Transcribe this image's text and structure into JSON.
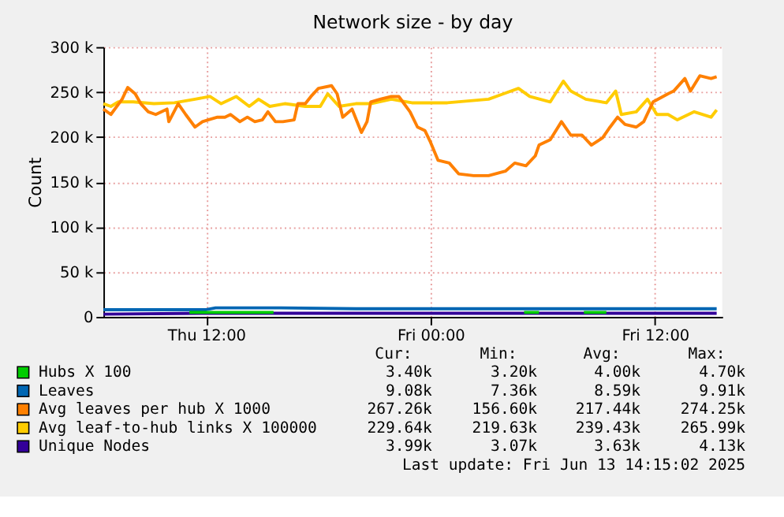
{
  "chart_data": {
    "type": "line",
    "title": "Network size - by day",
    "ylabel": "Count",
    "xlim": [
      "2025-06-12T06:30",
      "2025-06-13T15:36"
    ],
    "ylim": [
      0,
      300000
    ],
    "xticks": [
      {
        "value": "2025-06-12T12:00",
        "label": "Thu 12:00"
      },
      {
        "value": "2025-06-13T00:00",
        "label": "Fri 00:00"
      },
      {
        "value": "2025-06-13T12:00",
        "label": "Fri 12:00"
      }
    ],
    "yticks": [
      0,
      {
        "value": 50000,
        "label": "50 k"
      },
      {
        "value": 100000,
        "label": "100 k"
      },
      {
        "value": 150000,
        "label": "150 k"
      },
      {
        "value": 200000,
        "label": "200 k"
      },
      {
        "value": 250000,
        "label": "250 k"
      },
      {
        "value": 300000,
        "label": "300 k"
      }
    ],
    "grid": true,
    "legend": "bottom",
    "series": [
      {
        "name": "Hubs X 100",
        "color": "#00cc00",
        "x": [
          "2025-06-12T11:06",
          "2025-06-12T15:36",
          "2025-06-12T16:00",
          "2025-06-13T05:00",
          "2025-06-13T05:48",
          "2025-06-13T06:00",
          "2025-06-13T08:12",
          "2025-06-13T09:24"
        ],
        "values": [
          5000,
          5000,
          null,
          5000,
          5000,
          null,
          5000,
          5000
        ]
      },
      {
        "name": "Leaves",
        "color": "#0066b3",
        "x": [
          "2025-06-12T06:30",
          "2025-06-12T12:00",
          "2025-06-12T12:30",
          "2025-06-12T16:00",
          "2025-06-12T20:00",
          "2025-06-13T00:00",
          "2025-06-13T04:00",
          "2025-06-13T09:00",
          "2025-06-13T12:00",
          "2025-06-13T15:18"
        ],
        "values": [
          8000,
          8000,
          10000,
          10000,
          9000,
          9000,
          9000,
          9000,
          9000,
          9000
        ]
      },
      {
        "name": "Avg leaves per hub X 1000",
        "color": "#ff8000",
        "x": [
          "2025-06-12T06:30",
          "2025-06-12T06:54",
          "2025-06-12T07:30",
          "2025-06-12T07:48",
          "2025-06-12T08:12",
          "2025-06-12T08:30",
          "2025-06-12T08:54",
          "2025-06-12T09:18",
          "2025-06-12T09:54",
          "2025-06-12T10:00",
          "2025-06-12T10:30",
          "2025-06-12T10:54",
          "2025-06-12T11:24",
          "2025-06-12T11:48",
          "2025-06-12T12:06",
          "2025-06-12T12:36",
          "2025-06-12T13:00",
          "2025-06-12T13:18",
          "2025-06-12T13:48",
          "2025-06-12T14:12",
          "2025-06-12T14:36",
          "2025-06-12T15:00",
          "2025-06-12T15:18",
          "2025-06-12T15:42",
          "2025-06-12T16:06",
          "2025-06-12T16:42",
          "2025-06-12T16:54",
          "2025-06-12T17:18",
          "2025-06-12T17:36",
          "2025-06-12T18:00",
          "2025-06-12T18:42",
          "2025-06-12T19:00",
          "2025-06-12T19:18",
          "2025-06-12T19:48",
          "2025-06-12T20:18",
          "2025-06-12T20:36",
          "2025-06-12T20:48",
          "2025-06-12T21:18",
          "2025-06-12T21:54",
          "2025-06-12T22:18",
          "2025-06-12T22:54",
          "2025-06-12T23:18",
          "2025-06-12T23:42",
          "2025-06-13T00:00",
          "2025-06-13T00:24",
          "2025-06-13T01:00",
          "2025-06-13T01:30",
          "2025-06-13T02:18",
          "2025-06-13T03:06",
          "2025-06-13T04:00",
          "2025-06-13T04:30",
          "2025-06-13T05:06",
          "2025-06-13T05:36",
          "2025-06-13T05:48",
          "2025-06-13T06:24",
          "2025-06-13T07:00",
          "2025-06-13T07:30",
          "2025-06-13T08:06",
          "2025-06-13T08:36",
          "2025-06-13T09:12",
          "2025-06-13T09:36",
          "2025-06-13T10:00",
          "2025-06-13T10:24",
          "2025-06-13T11:00",
          "2025-06-13T11:24",
          "2025-06-13T11:54",
          "2025-06-13T12:42",
          "2025-06-13T13:00",
          "2025-06-13T13:36",
          "2025-06-13T13:54",
          "2025-06-13T14:24",
          "2025-06-13T15:00",
          "2025-06-13T15:18"
        ],
        "values": [
          231000,
          225000,
          242000,
          255000,
          248000,
          237000,
          228000,
          225000,
          231000,
          217000,
          237000,
          225000,
          211000,
          217000,
          219000,
          222000,
          222000,
          225000,
          217000,
          222000,
          217000,
          219000,
          228000,
          217000,
          217000,
          219000,
          237000,
          237000,
          245000,
          254000,
          257000,
          248000,
          222000,
          231000,
          205000,
          217000,
          239000,
          242000,
          245000,
          245000,
          228000,
          211000,
          207000,
          194000,
          174000,
          171000,
          159000,
          157000,
          157000,
          162000,
          171000,
          168000,
          179000,
          191000,
          197000,
          217000,
          202000,
          202000,
          191000,
          199000,
          211000,
          222000,
          214000,
          211000,
          217000,
          239000,
          248000,
          251000,
          265000,
          251000,
          268000,
          265000,
          267000
        ]
      },
      {
        "name": "Avg leaf-to-hub links X 100000",
        "color": "#ffcc00",
        "x": [
          "2025-06-12T06:30",
          "2025-06-12T06:54",
          "2025-06-12T07:18",
          "2025-06-12T08:06",
          "2025-06-12T09:12",
          "2025-06-12T10:18",
          "2025-06-12T11:24",
          "2025-06-12T12:12",
          "2025-06-12T12:48",
          "2025-06-12T13:36",
          "2025-06-12T14:18",
          "2025-06-12T14:48",
          "2025-06-12T15:24",
          "2025-06-12T16:12",
          "2025-06-12T17:18",
          "2025-06-12T18:06",
          "2025-06-12T18:30",
          "2025-06-12T19:06",
          "2025-06-12T20:00",
          "2025-06-12T20:48",
          "2025-06-12T21:54",
          "2025-06-12T23:00",
          "2025-06-13T00:54",
          "2025-06-13T03:06",
          "2025-06-13T03:54",
          "2025-06-13T04:42",
          "2025-06-13T05:18",
          "2025-06-13T06:24",
          "2025-06-13T07:06",
          "2025-06-13T07:30",
          "2025-06-13T08:18",
          "2025-06-13T09:24",
          "2025-06-13T09:54",
          "2025-06-13T10:12",
          "2025-06-13T11:00",
          "2025-06-13T11:36",
          "2025-06-13T12:06",
          "2025-06-13T12:42",
          "2025-06-13T13:12",
          "2025-06-13T14:06",
          "2025-06-13T15:00",
          "2025-06-13T15:18"
        ],
        "values": [
          237000,
          234000,
          239000,
          239000,
          237000,
          238000,
          242000,
          245000,
          237000,
          245000,
          234000,
          242000,
          234000,
          237000,
          234000,
          234000,
          248000,
          234000,
          237000,
          237000,
          242000,
          238000,
          238000,
          242000,
          248000,
          254000,
          245000,
          239000,
          262000,
          251000,
          242000,
          238000,
          251000,
          225000,
          228000,
          242000,
          225000,
          225000,
          219000,
          228000,
          222000,
          230000
        ]
      },
      {
        "name": "Unique Nodes",
        "color": "#330099",
        "x": [
          "2025-06-12T06:30",
          "2025-06-12T12:00",
          "2025-06-12T18:00",
          "2025-06-13T00:00",
          "2025-06-13T06:00",
          "2025-06-13T12:00",
          "2025-06-13T15:18"
        ],
        "values": [
          3000,
          4000,
          4000,
          4000,
          4000,
          4000,
          4000
        ]
      }
    ],
    "annotations": [
      "Cur:",
      "Min:",
      "Avg:",
      "Max:",
      "3.40k",
      "3.20k",
      "4.00k",
      "4.70k",
      "9.08k",
      "7.36k",
      "8.59k",
      "9.91k",
      "267.26k",
      "156.60k",
      "217.44k",
      "274.25k",
      "229.64k",
      "219.63k",
      "239.43k",
      "265.99k",
      "3.99k",
      "3.07k",
      "3.63k",
      "4.13k",
      "Last update: Fri Jun 13 14:15:02 2025"
    ]
  }
}
